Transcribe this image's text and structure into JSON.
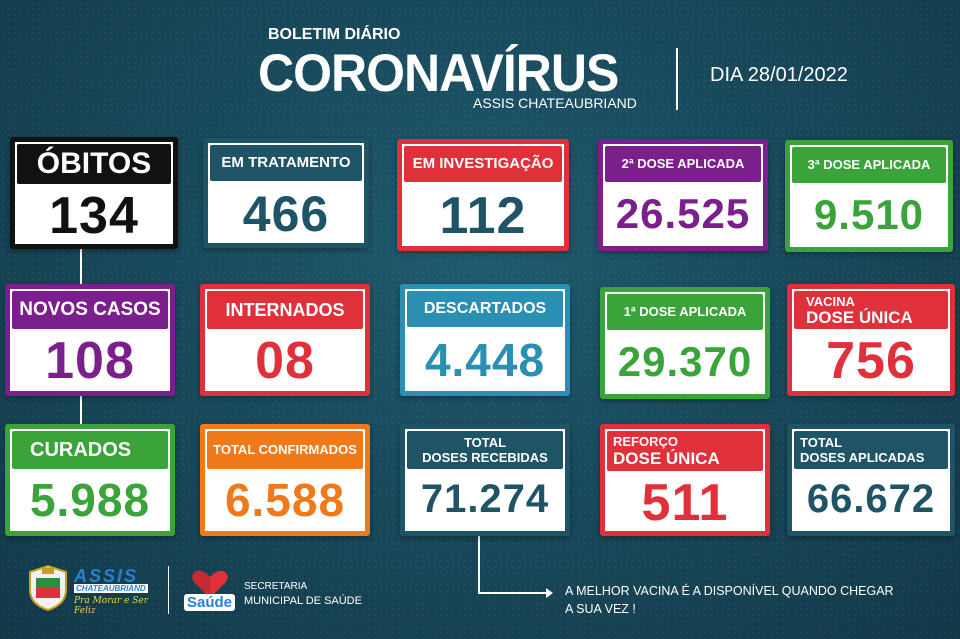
{
  "header": {
    "small_title": "BOLETIM DIÁRIO",
    "big_title": "CORONAVÍRUS",
    "city": "ASSIS CHATEAUBRIAND",
    "date": "DIA 28/01/2022"
  },
  "cards": {
    "obitos": {
      "label": "ÓBITOS",
      "value": "134"
    },
    "em_tratamento": {
      "label": "EM TRATAMENTO",
      "value": "466"
    },
    "em_investigacao": {
      "label": "EM INVESTIGAÇÃO",
      "value": "112"
    },
    "dose2": {
      "label": "2ª DOSE APLICADA",
      "value": "26.525"
    },
    "dose3": {
      "label": "3ª DOSE APLICADA",
      "value": "9.510"
    },
    "novos_casos": {
      "label": "NOVOS CASOS",
      "value": "108"
    },
    "internados": {
      "label": "INTERNADOS",
      "value": "08"
    },
    "descartados": {
      "label": "DESCARTADOS",
      "value": "4.448"
    },
    "dose1": {
      "label": "1ª DOSE APLICADA",
      "value": "29.370"
    },
    "vacina_dose_unica": {
      "label_line1": "VACINA",
      "label_line2": "DOSE ÚNICA",
      "value": "756"
    },
    "curados": {
      "label": "CURADOS",
      "value": "5.988"
    },
    "total_confirmados": {
      "label": "TOTAL CONFIRMADOS",
      "value": "6.588"
    },
    "total_doses_recebidas": {
      "label_line1": "TOTAL",
      "label_line2": "DOSES RECEBIDAS",
      "value": "71.274"
    },
    "reforco_dose_unica": {
      "label_line1": "REFORÇO",
      "label_line2": "DOSE ÚNICA",
      "value": "511"
    },
    "total_doses_aplicadas": {
      "label_line1": "TOTAL",
      "label_line2": "DOSES APLICADAS",
      "value": "66.672"
    }
  },
  "footer": {
    "assis_logo_text": "ASSIS",
    "assis_logo_sub": "CHATEAUBRIAND",
    "assis_slogan": "Pra Morar e Ser Feliz",
    "saude_logo_text": "Saúde",
    "secretaria_line1": "SECRETARIA",
    "secretaria_line2": "MUNICIPAL DE SAÚDE",
    "message_line1": "A MELHOR VACINA É A DISPONÍVEL QUANDO CHEGAR",
    "message_line2": "A SUA VEZ !"
  },
  "colors": {
    "background": "#184a5c",
    "black": "#111111",
    "teal": "#1f5466",
    "red": "#e0303a",
    "purple": "#7a1f8c",
    "green": "#3aa33a",
    "blue": "#2a8fb0",
    "orange": "#f07a1a"
  }
}
